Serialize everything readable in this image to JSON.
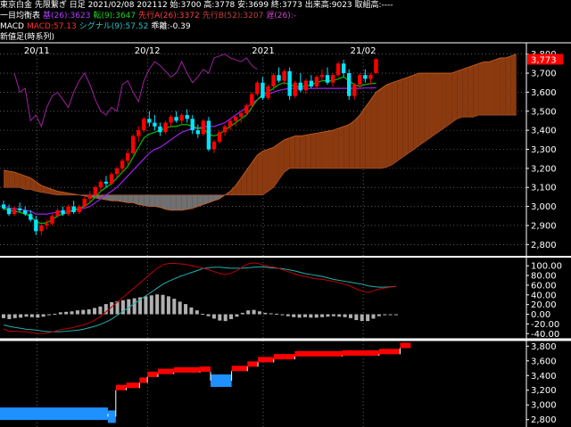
{
  "header": {
    "line1": "東京白金 先限繋ぎ 日足 2021/02/08 202112 始:3700 高:3778 安:3699 終:3773 出来高:9023 取組高:----",
    "ichimoku": {
      "label": "一目均衡表",
      "base": "基(26):3623",
      "conv": "転(9):3647",
      "spanA": "先行A(26):3372",
      "spanB": "先行B(52):3207",
      "lag": "遅(26):-"
    },
    "macd": {
      "label": "MACD",
      "macd": "MACD:57.13",
      "signal": "シグナル(9):57.52",
      "hist": "乖離:-0.39"
    },
    "line4": "新値足(時系列)"
  },
  "colors": {
    "background": "#000000",
    "up": "#ff0000",
    "down": "#00e5ff",
    "base_line": "#a020f0",
    "conv_line": "#00c000",
    "lag_line": "#a020a0",
    "cloud_bull": "#8b3a10",
    "cloud_bear": "#707070",
    "macd_line": "#c00000",
    "signal_line": "#20b0b0",
    "hist": "#b0b0b0",
    "price_tag": "#ff0000",
    "grid": "#ffffff"
  },
  "chart_data": [
    {
      "type": "candlestick",
      "title": "東京白金 先限繋ぎ 日足",
      "x_labels": [
        "20/11",
        "20/12",
        "2021",
        "21/02"
      ],
      "y_ticks": [
        "2,800",
        "2,900",
        "3,000",
        "3,100",
        "3,200",
        "3,300",
        "3,400",
        "3,500",
        "3,600",
        "3,700",
        "3,800"
      ],
      "ylim": [
        2750,
        3850
      ],
      "last_price": "3,773",
      "candles": [
        [
          3010,
          3030,
          2980,
          2990
        ],
        [
          2990,
          3010,
          2950,
          2960
        ],
        [
          2960,
          3000,
          2950,
          2990
        ],
        [
          2990,
          3020,
          2970,
          2980
        ],
        [
          2980,
          3000,
          2950,
          2960
        ],
        [
          2960,
          2980,
          2920,
          2930
        ],
        [
          2930,
          2950,
          2850,
          2870
        ],
        [
          2870,
          2920,
          2850,
          2900
        ],
        [
          2900,
          2930,
          2880,
          2910
        ],
        [
          2910,
          2960,
          2900,
          2950
        ],
        [
          2950,
          2990,
          2940,
          2980
        ],
        [
          2980,
          3000,
          2950,
          2960
        ],
        [
          2960,
          3010,
          2950,
          3000
        ],
        [
          3000,
          3030,
          2960,
          2970
        ],
        [
          2970,
          3010,
          2960,
          3000
        ],
        [
          3000,
          3050,
          2990,
          3040
        ],
        [
          3040,
          3080,
          3020,
          3060
        ],
        [
          3060,
          3110,
          3050,
          3100
        ],
        [
          3100,
          3140,
          3080,
          3130
        ],
        [
          3130,
          3160,
          3100,
          3120
        ],
        [
          3120,
          3180,
          3110,
          3170
        ],
        [
          3170,
          3210,
          3150,
          3200
        ],
        [
          3200,
          3250,
          3180,
          3240
        ],
        [
          3240,
          3300,
          3220,
          3280
        ],
        [
          3280,
          3380,
          3270,
          3370
        ],
        [
          3370,
          3420,
          3340,
          3400
        ],
        [
          3400,
          3470,
          3390,
          3460
        ],
        [
          3460,
          3500,
          3420,
          3440
        ],
        [
          3440,
          3480,
          3400,
          3420
        ],
        [
          3420,
          3440,
          3370,
          3390
        ],
        [
          3390,
          3450,
          3380,
          3440
        ],
        [
          3440,
          3480,
          3420,
          3470
        ],
        [
          3470,
          3500,
          3440,
          3450
        ],
        [
          3450,
          3490,
          3430,
          3480
        ],
        [
          3480,
          3510,
          3440,
          3460
        ],
        [
          3460,
          3480,
          3380,
          3400
        ],
        [
          3400,
          3430,
          3360,
          3380
        ],
        [
          3380,
          3460,
          3370,
          3450
        ],
        [
          3450,
          3470,
          3290,
          3300
        ],
        [
          3300,
          3350,
          3280,
          3340
        ],
        [
          3340,
          3400,
          3330,
          3390
        ],
        [
          3390,
          3430,
          3370,
          3420
        ],
        [
          3420,
          3460,
          3400,
          3450
        ],
        [
          3450,
          3480,
          3420,
          3470
        ],
        [
          3470,
          3500,
          3440,
          3490
        ],
        [
          3490,
          3540,
          3480,
          3530
        ],
        [
          3530,
          3600,
          3520,
          3590
        ],
        [
          3590,
          3660,
          3580,
          3650
        ],
        [
          3650,
          3680,
          3560,
          3570
        ],
        [
          3570,
          3640,
          3560,
          3630
        ],
        [
          3630,
          3700,
          3610,
          3690
        ],
        [
          3690,
          3730,
          3650,
          3660
        ],
        [
          3660,
          3720,
          3640,
          3710
        ],
        [
          3710,
          3730,
          3560,
          3580
        ],
        [
          3580,
          3660,
          3570,
          3650
        ],
        [
          3650,
          3700,
          3600,
          3610
        ],
        [
          3610,
          3670,
          3590,
          3660
        ],
        [
          3660,
          3690,
          3620,
          3630
        ],
        [
          3630,
          3690,
          3620,
          3680
        ],
        [
          3680,
          3720,
          3660,
          3690
        ],
        [
          3690,
          3730,
          3640,
          3650
        ],
        [
          3650,
          3700,
          3630,
          3690
        ],
        [
          3690,
          3760,
          3680,
          3750
        ],
        [
          3750,
          3770,
          3680,
          3700
        ],
        [
          3700,
          3720,
          3560,
          3580
        ],
        [
          3580,
          3650,
          3560,
          3640
        ],
        [
          3640,
          3700,
          3620,
          3690
        ],
        [
          3690,
          3720,
          3650,
          3670
        ],
        [
          3670,
          3700,
          3640,
          3690
        ],
        [
          3700,
          3778,
          3699,
          3773
        ]
      ],
      "base_line": [
        3000,
        2990,
        2990,
        2985,
        2980,
        2975,
        2960,
        2960,
        2960,
        2965,
        2970,
        2975,
        2975,
        2980,
        2985,
        2990,
        3000,
        3020,
        3040,
        3060,
        3080,
        3100,
        3130,
        3160,
        3190,
        3220,
        3250,
        3280,
        3300,
        3310,
        3330,
        3350,
        3370,
        3390,
        3400,
        3410,
        3410,
        3420,
        3420,
        3420,
        3430,
        3440,
        3460,
        3480,
        3500,
        3520,
        3540,
        3560,
        3580,
        3590,
        3600,
        3610,
        3615,
        3620,
        3620,
        3620,
        3620,
        3620,
        3620,
        3620,
        3620,
        3620,
        3620,
        3620,
        3620,
        3620,
        3620,
        3622,
        3622,
        3623
      ],
      "conv_line": [
        2990,
        2980,
        2975,
        2970,
        2960,
        2950,
        2920,
        2910,
        2915,
        2930,
        2950,
        2960,
        2970,
        2980,
        2990,
        3000,
        3020,
        3050,
        3080,
        3100,
        3120,
        3150,
        3180,
        3210,
        3260,
        3310,
        3360,
        3380,
        3390,
        3400,
        3410,
        3420,
        3420,
        3430,
        3430,
        3420,
        3410,
        3410,
        3380,
        3370,
        3380,
        3400,
        3420,
        3440,
        3460,
        3480,
        3520,
        3560,
        3590,
        3600,
        3620,
        3640,
        3650,
        3640,
        3630,
        3630,
        3630,
        3640,
        3650,
        3660,
        3660,
        3660,
        3670,
        3680,
        3660,
        3640,
        3630,
        3640,
        3645,
        3647
      ],
      "lag_line": [
        3700,
        3600,
        3620,
        3450,
        3480,
        3420,
        3520,
        3580,
        3600,
        3560,
        3520,
        3600,
        3660,
        3700,
        3640,
        3560,
        3500,
        3480,
        3520,
        3500,
        3640,
        3660,
        3600,
        3550,
        3660,
        3720,
        3760,
        3740,
        3710,
        3680,
        3700,
        3760,
        3700,
        3650,
        3680,
        3720,
        3700,
        3780,
        3790,
        3800,
        3780,
        3770,
        3760,
        3780,
        3740,
        3720
      ],
      "span_a": [
        3190,
        3185,
        3180,
        3170,
        3160,
        3150,
        3130,
        3110,
        3100,
        3090,
        3080,
        3075,
        3070,
        3065,
        3060,
        3055,
        3050,
        3045,
        3040,
        3035,
        3030,
        3030,
        3025,
        3020,
        3020,
        3010,
        3005,
        3000,
        3000,
        2995,
        2985,
        2980,
        2980,
        2980,
        2985,
        2990,
        3000,
        3010,
        3020,
        3030,
        3040,
        3060,
        3080,
        3110,
        3150,
        3190,
        3230,
        3270,
        3290,
        3300,
        3310,
        3330,
        3350,
        3360,
        3370,
        3370,
        3375,
        3380,
        3385,
        3390,
        3395,
        3400,
        3410,
        3420,
        3430,
        3450,
        3480,
        3520,
        3560,
        3600,
        3620,
        3640,
        3650,
        3660,
        3670,
        3680,
        3690,
        3700,
        3700,
        3700,
        3700,
        3700,
        3700,
        3700,
        3710,
        3720,
        3730,
        3740,
        3750,
        3760,
        3760,
        3770,
        3780,
        3780,
        3790,
        3800
      ],
      "span_b": [
        3100,
        3100,
        3100,
        3100,
        3090,
        3090,
        3080,
        3075,
        3070,
        3065,
        3060,
        3060,
        3060,
        3060,
        3060,
        3060,
        3060,
        3060,
        3060,
        3060,
        3060,
        3060,
        3060,
        3060,
        3060,
        3060,
        3060,
        3060,
        3060,
        3060,
        3060,
        3060,
        3060,
        3060,
        3060,
        3060,
        3060,
        3060,
        3060,
        3060,
        3060,
        3060,
        3060,
        3060,
        3060,
        3060,
        3060,
        3060,
        3060,
        3080,
        3100,
        3140,
        3180,
        3200,
        3200,
        3200,
        3200,
        3200,
        3200,
        3200,
        3200,
        3200,
        3200,
        3200,
        3200,
        3200,
        3200,
        3200,
        3200,
        3200,
        3200,
        3207,
        3220,
        3240,
        3260,
        3280,
        3300,
        3320,
        3340,
        3360,
        3380,
        3400,
        3420,
        3440,
        3460,
        3470,
        3470,
        3470,
        3480,
        3480,
        3480,
        3480,
        3480,
        3480,
        3480,
        3480
      ]
    },
    {
      "type": "macd",
      "y_ticks": [
        "100.00",
        "80.00",
        "60.00",
        "40.00",
        "20.00",
        "0.00",
        "-20.00",
        "-40.00"
      ],
      "ylim": [
        -45,
        115
      ],
      "macd": [
        -30,
        -35,
        -35,
        -36,
        -36,
        -38,
        -40,
        -40,
        -38,
        -35,
        -32,
        -30,
        -28,
        -25,
        -22,
        -18,
        -12,
        -5,
        5,
        15,
        25,
        35,
        45,
        55,
        65,
        75,
        85,
        95,
        102,
        105,
        105,
        104,
        103,
        100,
        98,
        95,
        92,
        88,
        84,
        82,
        85,
        90,
        98,
        104,
        106,
        104,
        100,
        98,
        96,
        92,
        88,
        84,
        80,
        78,
        75,
        73,
        72,
        70,
        68,
        65,
        62,
        58,
        52,
        48,
        45,
        48,
        52,
        54,
        56,
        57.13
      ],
      "signal": [
        -22,
        -25,
        -27,
        -29,
        -31,
        -32,
        -33,
        -35,
        -36,
        -36,
        -36,
        -35,
        -34,
        -33,
        -31,
        -28,
        -25,
        -21,
        -16,
        -10,
        -2,
        6,
        14,
        22,
        30,
        38,
        46,
        54,
        62,
        68,
        73,
        78,
        82,
        86,
        90,
        94,
        96,
        97,
        97,
        96,
        95,
        95,
        95,
        96,
        97,
        98,
        97,
        96,
        95,
        94,
        92,
        90,
        87,
        84,
        82,
        80,
        78,
        75,
        72,
        70,
        68,
        66,
        64,
        62,
        59,
        57,
        56,
        56,
        56.5,
        57.52
      ],
      "hist": [
        -8,
        -10,
        -8,
        -7,
        -5,
        -6,
        -7,
        -5,
        -2,
        1,
        4,
        5,
        6,
        8,
        9,
        10,
        13,
        16,
        21,
        25,
        27,
        29,
        31,
        33,
        35,
        37,
        39,
        41,
        40,
        37,
        32,
        26,
        21,
        14,
        8,
        1,
        -4,
        -9,
        -13,
        -14,
        -10,
        -5,
        3,
        8,
        9,
        6,
        3,
        2,
        1,
        -2,
        -4,
        -6,
        -7,
        -6,
        -7,
        -7,
        -6,
        -5,
        -4,
        -5,
        -6,
        -8,
        -12,
        -14,
        -14,
        -9,
        -4,
        -2,
        -0.5,
        -0.39
      ]
    },
    {
      "type": "new_price_bars",
      "title": "新値足(時系列)",
      "y_ticks": [
        "2,800",
        "3,000",
        "3,200",
        "3,400",
        "3,600",
        "3,800"
      ],
      "ylim": [
        2760,
        3840
      ],
      "steps": [
        {
          "from": 0,
          "to": 0.205,
          "level": 2880,
          "dir": "down"
        },
        {
          "from": 0.205,
          "to": 0.22,
          "level": 2840,
          "dir": "down"
        },
        {
          "from": 0.22,
          "to": 0.24,
          "level": 3200,
          "dir": "up"
        },
        {
          "from": 0.24,
          "to": 0.265,
          "level": 3230,
          "dir": "up"
        },
        {
          "from": 0.265,
          "to": 0.28,
          "level": 3300,
          "dir": "up"
        },
        {
          "from": 0.28,
          "to": 0.3,
          "level": 3380,
          "dir": "up"
        },
        {
          "from": 0.3,
          "to": 0.33,
          "level": 3420,
          "dir": "up"
        },
        {
          "from": 0.33,
          "to": 0.38,
          "level": 3440,
          "dir": "up"
        },
        {
          "from": 0.38,
          "to": 0.4,
          "level": 3450,
          "dir": "up"
        },
        {
          "from": 0.4,
          "to": 0.44,
          "level": 3330,
          "dir": "down"
        },
        {
          "from": 0.44,
          "to": 0.47,
          "level": 3460,
          "dir": "up"
        },
        {
          "from": 0.47,
          "to": 0.49,
          "level": 3520,
          "dir": "up"
        },
        {
          "from": 0.49,
          "to": 0.52,
          "level": 3580,
          "dir": "up"
        },
        {
          "from": 0.52,
          "to": 0.56,
          "level": 3620,
          "dir": "up"
        },
        {
          "from": 0.56,
          "to": 0.65,
          "level": 3660,
          "dir": "up"
        },
        {
          "from": 0.65,
          "to": 0.72,
          "level": 3670,
          "dir": "up"
        },
        {
          "from": 0.72,
          "to": 0.76,
          "level": 3690,
          "dir": "up"
        },
        {
          "from": 0.76,
          "to": 0.78,
          "level": 3773,
          "dir": "up"
        }
      ]
    }
  ]
}
